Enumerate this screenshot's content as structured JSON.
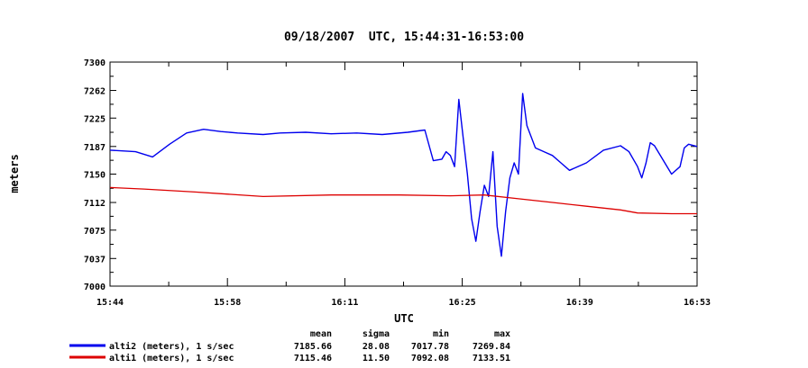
{
  "chart_data": {
    "type": "line",
    "title": "09/18/2007  UTC, 15:44:31-16:53:00",
    "xlabel": "UTC",
    "ylabel": "meters",
    "x_ticks": [
      "15:44",
      "15:58",
      "16:11",
      "16:25",
      "16:39",
      "16:53"
    ],
    "x_range": [
      "15:44",
      "16:53"
    ],
    "y_ticks": [
      7300,
      7262,
      7225,
      7187,
      7150,
      7112,
      7075,
      7037,
      7000
    ],
    "ylim": [
      7000,
      7300
    ],
    "grid": false,
    "series": [
      {
        "name": "alti2 (meters), 1 s/sec",
        "color": "#0000ee",
        "x_minutes": [
          0,
          3,
          5,
          7,
          9,
          11,
          13,
          15,
          18,
          20,
          23,
          26,
          29,
          32,
          35,
          37,
          38,
          39,
          39.5,
          40,
          40.5,
          41,
          41.5,
          42,
          42.5,
          43,
          43.5,
          44,
          44.5,
          45,
          45.5,
          46,
          46.5,
          47,
          47.5,
          48,
          48.5,
          49,
          50,
          51,
          52,
          53,
          54,
          56,
          58,
          60,
          61,
          62,
          62.5,
          63,
          63.5,
          64,
          66,
          67,
          67.5,
          68,
          69
        ],
        "values": [
          7182,
          7180,
          7173,
          7190,
          7205,
          7210,
          7207,
          7205,
          7203,
          7205,
          7206,
          7204,
          7205,
          7203,
          7206,
          7209,
          7168,
          7170,
          7180,
          7175,
          7160,
          7250,
          7200,
          7150,
          7090,
          7060,
          7100,
          7135,
          7120,
          7180,
          7080,
          7040,
          7100,
          7145,
          7165,
          7150,
          7258,
          7215,
          7185,
          7180,
          7175,
          7165,
          7155,
          7165,
          7182,
          7188,
          7180,
          7160,
          7145,
          7165,
          7192,
          7188,
          7150,
          7160,
          7185,
          7190,
          7187
        ]
      },
      {
        "name": "alti1 (meters), 1 s/sec",
        "color": "#dd0000",
        "x_minutes": [
          0,
          4,
          10,
          18,
          26,
          34,
          40,
          44,
          48,
          52,
          56,
          60,
          62,
          66,
          69
        ],
        "values": [
          7132,
          7130,
          7126,
          7120,
          7122,
          7122,
          7121,
          7122,
          7117,
          7112,
          7107,
          7102,
          7098,
          7097,
          7097
        ]
      }
    ],
    "stats": {
      "headers": [
        "mean",
        "sigma",
        "min",
        "max"
      ],
      "rows": [
        {
          "label": "alti2 (meters), 1 s/sec",
          "color": "#0000ee",
          "values": [
            "7185.66",
            "28.08",
            "7017.78",
            "7269.84"
          ]
        },
        {
          "label": "alti1 (meters), 1 s/sec",
          "color": "#dd0000",
          "values": [
            "7115.46",
            "11.50",
            "7092.08",
            "7133.51"
          ]
        }
      ]
    }
  }
}
